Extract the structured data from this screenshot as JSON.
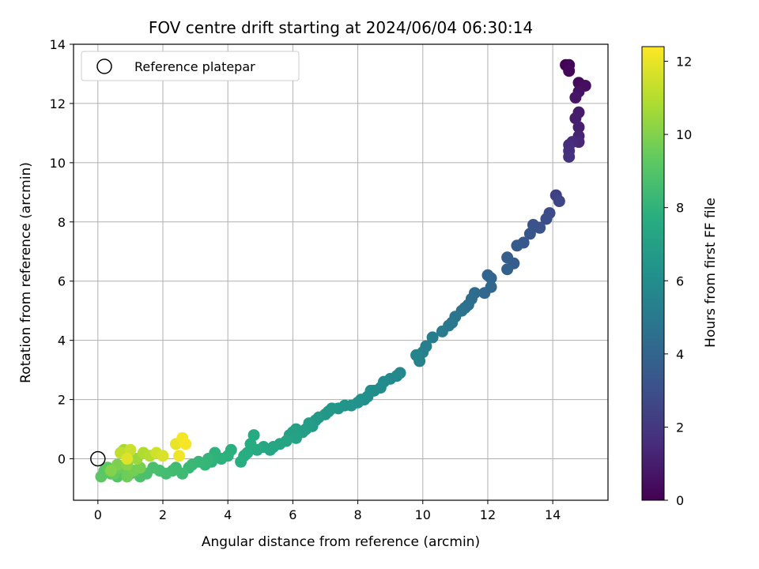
{
  "chart_data": {
    "type": "scatter",
    "title": "FOV centre drift starting at 2024/06/04 06:30:14",
    "xlabel": "Angular distance from reference (arcmin)",
    "ylabel": "Rotation from reference (arcmin)",
    "xlim": [
      -0.75,
      15.7
    ],
    "ylim": [
      -1.4,
      14.0
    ],
    "xticks": [
      0,
      2,
      4,
      6,
      8,
      10,
      12,
      14
    ],
    "yticks": [
      0,
      2,
      4,
      6,
      8,
      10,
      12,
      14
    ],
    "grid": true,
    "legend": {
      "position": "top-left",
      "entries": [
        "Reference platepar"
      ]
    },
    "reference_point": {
      "x": 0,
      "y": 0,
      "label": "Reference platepar"
    },
    "colorbar": {
      "label": "Hours from first FF file",
      "range": [
        0,
        12.4
      ],
      "ticks": [
        0,
        2,
        4,
        6,
        8,
        10,
        12
      ],
      "colormap": "viridis"
    },
    "series": [
      {
        "points": [
          [
            14.4,
            13.3,
            0.0
          ],
          [
            14.5,
            13.3,
            0.1
          ],
          [
            14.5,
            13.1,
            0.2
          ],
          [
            14.8,
            12.7,
            0.3
          ],
          [
            14.9,
            12.6,
            0.4
          ],
          [
            15.0,
            12.6,
            0.45
          ],
          [
            14.8,
            12.4,
            0.6
          ],
          [
            14.7,
            12.2,
            0.7
          ],
          [
            14.8,
            11.7,
            0.9
          ],
          [
            14.7,
            11.5,
            1.0
          ],
          [
            14.8,
            11.2,
            1.1
          ],
          [
            14.8,
            10.9,
            1.25
          ],
          [
            14.8,
            10.7,
            1.35
          ],
          [
            14.6,
            10.7,
            1.45
          ],
          [
            14.5,
            10.6,
            1.55
          ],
          [
            14.5,
            10.4,
            1.65
          ],
          [
            14.5,
            10.2,
            1.75
          ],
          [
            14.1,
            8.9,
            2.4
          ],
          [
            14.2,
            8.7,
            2.6
          ],
          [
            13.9,
            8.3,
            2.8
          ],
          [
            13.8,
            8.1,
            2.95
          ],
          [
            13.6,
            7.8,
            3.1
          ],
          [
            13.4,
            7.9,
            3.2
          ],
          [
            13.3,
            7.6,
            3.3
          ],
          [
            13.1,
            7.3,
            3.4
          ],
          [
            12.9,
            7.2,
            3.5
          ],
          [
            12.8,
            6.6,
            3.6
          ],
          [
            12.6,
            6.8,
            3.7
          ],
          [
            12.6,
            6.4,
            3.8
          ],
          [
            12.1,
            6.1,
            3.95
          ],
          [
            12.0,
            6.2,
            4.0
          ],
          [
            12.1,
            5.8,
            4.1
          ],
          [
            11.9,
            5.6,
            4.2
          ],
          [
            11.6,
            5.6,
            4.3
          ],
          [
            11.5,
            5.4,
            4.4
          ],
          [
            11.4,
            5.2,
            4.5
          ],
          [
            11.3,
            5.1,
            4.6
          ],
          [
            11.2,
            5.0,
            4.7
          ],
          [
            11.0,
            4.8,
            4.8
          ],
          [
            10.9,
            4.6,
            4.85
          ],
          [
            10.8,
            4.5,
            4.95
          ],
          [
            10.6,
            4.3,
            5.1
          ],
          [
            10.3,
            4.1,
            5.2
          ],
          [
            10.1,
            3.8,
            5.3
          ],
          [
            10.0,
            3.6,
            5.4
          ],
          [
            9.9,
            3.3,
            5.5
          ],
          [
            9.8,
            3.5,
            5.55
          ],
          [
            9.3,
            2.9,
            5.7
          ],
          [
            9.2,
            2.8,
            5.75
          ],
          [
            9.0,
            2.7,
            5.8
          ],
          [
            8.8,
            2.6,
            5.9
          ],
          [
            8.7,
            2.4,
            5.95
          ],
          [
            8.5,
            2.3,
            6.0
          ],
          [
            8.4,
            2.3,
            6.05
          ],
          [
            8.3,
            2.1,
            6.1
          ],
          [
            8.2,
            2.0,
            6.15
          ],
          [
            8.1,
            2.0,
            6.2
          ],
          [
            8.0,
            1.9,
            6.25
          ],
          [
            7.8,
            1.8,
            6.35
          ],
          [
            7.6,
            1.8,
            6.4
          ],
          [
            7.4,
            1.7,
            6.45
          ],
          [
            7.2,
            1.7,
            6.5
          ],
          [
            7.1,
            1.6,
            6.55
          ],
          [
            7.0,
            1.5,
            6.6
          ],
          [
            6.8,
            1.4,
            6.65
          ],
          [
            6.7,
            1.3,
            6.7
          ],
          [
            6.6,
            1.1,
            6.75
          ],
          [
            6.5,
            1.2,
            6.8
          ],
          [
            6.4,
            1.0,
            6.85
          ],
          [
            6.3,
            0.9,
            6.9
          ],
          [
            6.1,
            1.0,
            6.95
          ],
          [
            6.0,
            0.9,
            7.0
          ],
          [
            5.9,
            0.8,
            7.05
          ],
          [
            6.1,
            0.7,
            7.1
          ],
          [
            5.8,
            0.6,
            7.2
          ],
          [
            5.6,
            0.5,
            7.25
          ],
          [
            5.4,
            0.4,
            7.3
          ],
          [
            5.3,
            0.3,
            7.35
          ],
          [
            5.1,
            0.4,
            7.4
          ],
          [
            4.9,
            0.3,
            7.5
          ],
          [
            4.8,
            0.8,
            7.55
          ],
          [
            4.7,
            0.5,
            7.6
          ],
          [
            4.6,
            0.2,
            7.65
          ],
          [
            4.5,
            0.1,
            7.7
          ],
          [
            4.4,
            -0.1,
            7.75
          ],
          [
            4.1,
            0.3,
            7.8
          ],
          [
            4.0,
            0.1,
            7.85
          ],
          [
            3.8,
            0.0,
            7.9
          ],
          [
            3.6,
            0.2,
            7.95
          ],
          [
            3.5,
            -0.1,
            8.0
          ],
          [
            3.4,
            0.0,
            8.1
          ],
          [
            3.3,
            -0.2,
            8.15
          ],
          [
            3.1,
            -0.1,
            8.2
          ],
          [
            2.9,
            -0.2,
            8.25
          ],
          [
            2.8,
            -0.3,
            8.3
          ],
          [
            2.6,
            -0.5,
            8.4
          ],
          [
            2.4,
            -0.3,
            8.45
          ],
          [
            2.3,
            -0.4,
            8.5
          ],
          [
            2.1,
            -0.5,
            8.55
          ],
          [
            1.9,
            -0.4,
            8.6
          ],
          [
            1.7,
            -0.3,
            8.7
          ],
          [
            1.5,
            -0.5,
            8.75
          ],
          [
            1.3,
            -0.6,
            8.8
          ],
          [
            1.2,
            -0.4,
            8.85
          ],
          [
            1.0,
            -0.5,
            8.9
          ],
          [
            0.8,
            -0.4,
            8.95
          ],
          [
            0.6,
            -0.6,
            9.0
          ],
          [
            0.4,
            -0.5,
            9.1
          ],
          [
            0.2,
            -0.4,
            9.15
          ],
          [
            0.1,
            -0.6,
            9.2
          ],
          [
            0.3,
            -0.3,
            9.3
          ],
          [
            0.5,
            -0.5,
            9.4
          ],
          [
            0.7,
            -0.3,
            9.5
          ],
          [
            0.9,
            -0.6,
            9.6
          ],
          [
            1.1,
            -0.4,
            9.7
          ],
          [
            1.3,
            -0.3,
            9.8
          ],
          [
            0.6,
            -0.2,
            9.9
          ],
          [
            0.4,
            -0.4,
            10.0
          ],
          [
            0.9,
            -0.2,
            10.1
          ],
          [
            1.0,
            0.1,
            10.3
          ],
          [
            1.2,
            0.0,
            10.5
          ],
          [
            0.8,
            0.3,
            10.7
          ],
          [
            1.4,
            0.2,
            10.9
          ],
          [
            1.6,
            0.1,
            11.0
          ],
          [
            0.7,
            0.2,
            11.2
          ],
          [
            1.0,
            0.3,
            11.4
          ],
          [
            1.8,
            0.2,
            11.5
          ],
          [
            2.0,
            0.1,
            11.7
          ],
          [
            0.9,
            0.0,
            11.8
          ],
          [
            2.4,
            0.5,
            12.0
          ],
          [
            2.5,
            0.1,
            12.1
          ],
          [
            2.6,
            0.7,
            12.2
          ],
          [
            2.7,
            0.5,
            12.3
          ]
        ]
      }
    ]
  }
}
